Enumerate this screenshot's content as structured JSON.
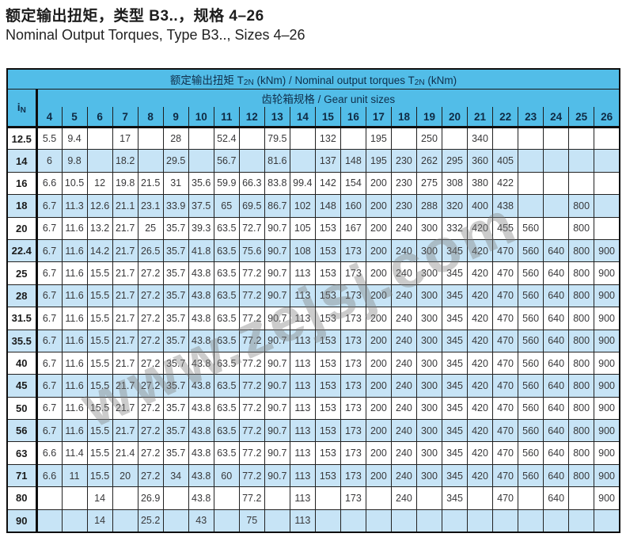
{
  "page": {
    "title_zh": "额定输出扭矩，类型 B3..，规格 4–26",
    "title_en": "Nominal Output Torques, Type B3.., Sizes 4–26"
  },
  "watermark": "www.zejsj.com",
  "colors": {
    "header_blue": "#52BDE8",
    "row_blue": "#C7E4F6",
    "header_text": "#10304C"
  },
  "table": {
    "main_header": {
      "pre": "额定输出扭矩 T",
      "sub1": "2N",
      "mid": " (kNm) / Nominal output torques T",
      "sub2": "2N",
      "post": " (kNm)"
    },
    "gear_header": "齿轮箱规格 / Gear unit sizes",
    "ratio_header": {
      "base": "i",
      "sub": "N"
    },
    "size_columns": [
      "4",
      "5",
      "6",
      "7",
      "8",
      "9",
      "10",
      "11",
      "12",
      "13",
      "14",
      "15",
      "16",
      "17",
      "18",
      "19",
      "20",
      "21",
      "22",
      "23",
      "24",
      "25",
      "26"
    ],
    "rows": [
      {
        "ratio": "12.5",
        "values": [
          "5.5",
          "9.4",
          "",
          "17",
          "",
          "28",
          "",
          "52.4",
          "",
          "79.5",
          "",
          "132",
          "",
          "195",
          "",
          "250",
          "",
          "340",
          "",
          "",
          "",
          "",
          ""
        ]
      },
      {
        "ratio": "14",
        "values": [
          "6",
          "9.8",
          "",
          "18.2",
          "",
          "29.5",
          "",
          "56.7",
          "",
          "81.6",
          "",
          "137",
          "148",
          "195",
          "230",
          "262",
          "295",
          "360",
          "405",
          "",
          "",
          "",
          ""
        ]
      },
      {
        "ratio": "16",
        "values": [
          "6.6",
          "10.5",
          "12",
          "19.8",
          "21.5",
          "31",
          "35.6",
          "59.9",
          "66.3",
          "83.8",
          "99.4",
          "142",
          "154",
          "200",
          "230",
          "275",
          "308",
          "380",
          "422",
          "",
          "",
          "",
          ""
        ]
      },
      {
        "ratio": "18",
        "values": [
          "6.7",
          "11.3",
          "12.6",
          "21.1",
          "23.1",
          "33.9",
          "37.5",
          "65",
          "69.5",
          "86.7",
          "102",
          "148",
          "160",
          "200",
          "230",
          "288",
          "320",
          "400",
          "438",
          "",
          "",
          "800",
          ""
        ]
      },
      {
        "ratio": "20",
        "values": [
          "6.7",
          "11.6",
          "13.2",
          "21.7",
          "25",
          "35.7",
          "39.3",
          "63.5",
          "72.7",
          "90.7",
          "105",
          "153",
          "167",
          "200",
          "240",
          "300",
          "332",
          "420",
          "455",
          "560",
          "",
          "800",
          ""
        ]
      },
      {
        "ratio": "22.4",
        "values": [
          "6.7",
          "11.6",
          "14.2",
          "21.7",
          "26.5",
          "35.7",
          "41.8",
          "63.5",
          "75.6",
          "90.7",
          "108",
          "153",
          "173",
          "200",
          "240",
          "300",
          "345",
          "420",
          "470",
          "560",
          "640",
          "800",
          "900"
        ]
      },
      {
        "ratio": "25",
        "values": [
          "6.7",
          "11.6",
          "15.5",
          "21.7",
          "27.2",
          "35.7",
          "43.8",
          "63.5",
          "77.2",
          "90.7",
          "113",
          "153",
          "173",
          "200",
          "240",
          "300",
          "345",
          "420",
          "470",
          "560",
          "640",
          "800",
          "900"
        ]
      },
      {
        "ratio": "28",
        "values": [
          "6.7",
          "11.6",
          "15.5",
          "21.7",
          "27.2",
          "35.7",
          "43.8",
          "63.5",
          "77.2",
          "90.7",
          "113",
          "153",
          "173",
          "200",
          "240",
          "300",
          "345",
          "420",
          "470",
          "560",
          "640",
          "800",
          "900"
        ]
      },
      {
        "ratio": "31.5",
        "values": [
          "6.7",
          "11.6",
          "15.5",
          "21.7",
          "27.2",
          "35.7",
          "43.8",
          "63.5",
          "77.2",
          "90.7",
          "113",
          "153",
          "173",
          "200",
          "240",
          "300",
          "345",
          "420",
          "470",
          "560",
          "640",
          "800",
          "900"
        ]
      },
      {
        "ratio": "35.5",
        "values": [
          "6.7",
          "11.6",
          "15.5",
          "21.7",
          "27.2",
          "35.7",
          "43.8",
          "63.5",
          "77.2",
          "90.7",
          "113",
          "153",
          "173",
          "200",
          "240",
          "300",
          "345",
          "420",
          "470",
          "560",
          "640",
          "800",
          "900"
        ]
      },
      {
        "ratio": "40",
        "values": [
          "6.7",
          "11.6",
          "15.5",
          "21.7",
          "27.2",
          "35.7",
          "43.8",
          "63.5",
          "77.2",
          "90.7",
          "113",
          "153",
          "173",
          "200",
          "240",
          "300",
          "345",
          "420",
          "470",
          "560",
          "640",
          "800",
          "900"
        ]
      },
      {
        "ratio": "45",
        "values": [
          "6.7",
          "11.6",
          "15.5",
          "21.7",
          "27.2",
          "35.7",
          "43.8",
          "63.5",
          "77.2",
          "90.7",
          "113",
          "153",
          "173",
          "200",
          "240",
          "300",
          "345",
          "420",
          "470",
          "560",
          "640",
          "800",
          "900"
        ]
      },
      {
        "ratio": "50",
        "values": [
          "6.7",
          "11.6",
          "15.5",
          "21.7",
          "27.2",
          "35.7",
          "43.8",
          "63.5",
          "77.2",
          "90.7",
          "113",
          "153",
          "173",
          "200",
          "240",
          "300",
          "345",
          "420",
          "470",
          "560",
          "640",
          "800",
          "900"
        ]
      },
      {
        "ratio": "56",
        "values": [
          "6.7",
          "11.6",
          "15.5",
          "21.7",
          "27.2",
          "35.7",
          "43.8",
          "63.5",
          "77.2",
          "90.7",
          "113",
          "153",
          "173",
          "200",
          "240",
          "300",
          "345",
          "420",
          "470",
          "560",
          "640",
          "800",
          "900"
        ]
      },
      {
        "ratio": "63",
        "values": [
          "6.6",
          "11.4",
          "15.5",
          "21.4",
          "27.2",
          "35.7",
          "43.8",
          "63.5",
          "77.2",
          "90.7",
          "113",
          "153",
          "173",
          "200",
          "240",
          "300",
          "345",
          "420",
          "470",
          "560",
          "640",
          "800",
          "900"
        ]
      },
      {
        "ratio": "71",
        "values": [
          "6.6",
          "11",
          "15.5",
          "20",
          "27.2",
          "34",
          "43.8",
          "60",
          "77.2",
          "90.7",
          "113",
          "153",
          "173",
          "200",
          "240",
          "300",
          "345",
          "420",
          "470",
          "560",
          "640",
          "800",
          "900"
        ]
      },
      {
        "ratio": "80",
        "values": [
          "",
          "",
          "14",
          "",
          "26.9",
          "",
          "43.8",
          "",
          "77.2",
          "",
          "113",
          "",
          "173",
          "",
          "240",
          "",
          "345",
          "",
          "470",
          "",
          "640",
          "",
          "900"
        ]
      },
      {
        "ratio": "90",
        "values": [
          "",
          "",
          "14",
          "",
          "25.2",
          "",
          "43",
          "",
          "75",
          "",
          "113",
          "",
          "",
          "",
          "",
          "",
          "",
          "",
          "",
          "",
          "",
          "",
          ""
        ]
      }
    ]
  }
}
